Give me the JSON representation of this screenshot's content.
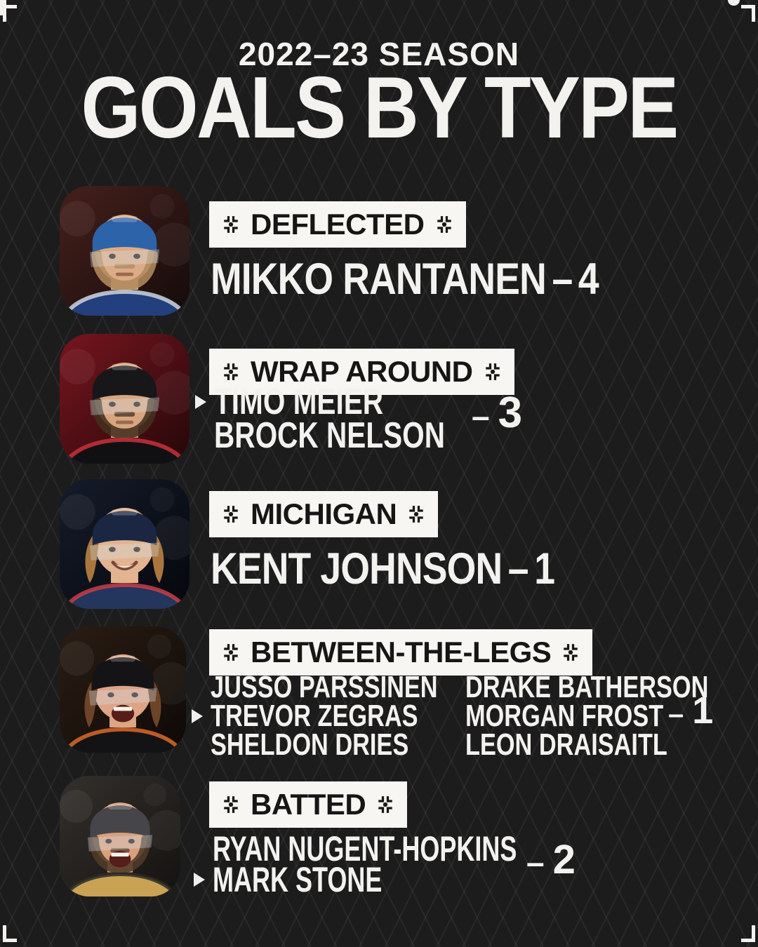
{
  "meta": {
    "dash": "–",
    "background": "#1c1c1d",
    "pattern_line_color": "#2b2b2d",
    "badge_bg": "#f7f6f3",
    "badge_text_color": "#161616",
    "text_color": "#f3f2ef"
  },
  "header": {
    "kicker": "2022–23 SEASON",
    "title": "GOALS BY TYPE"
  },
  "sections": [
    {
      "label": "DEFLECTED",
      "count": "4",
      "players": [
        {
          "name": "MIKKO RANTANEN",
          "starred": false
        }
      ],
      "photo": {
        "player": "Mikko Rantanen",
        "bg1": "#46201c",
        "bg2": "#140b0a",
        "helmet": "#2d63a8",
        "jersey": "#233f7d",
        "trim": "#cfd6df",
        "skin": "#dcab87",
        "hair": "#b08a5c",
        "expression": "neutral",
        "beard": true,
        "long_hair": false
      }
    },
    {
      "label": "WRAP AROUND",
      "count": "3",
      "players": [
        {
          "name": "TIMO MEIER",
          "starred": true
        },
        {
          "name": "BROCK NELSON",
          "starred": false
        }
      ],
      "photo": {
        "player": "Timo Meier",
        "bg1": "#77151f",
        "bg2": "#250709",
        "helmet": "#17171a",
        "jersey": "#101013",
        "trim": "#c8313a",
        "skin": "#d9a57f",
        "hair": "#43301f",
        "expression": "neutral",
        "beard": true,
        "long_hair": false
      }
    },
    {
      "label": "MICHIGAN",
      "count": "1",
      "players": [
        {
          "name": "KENT JOHNSON",
          "starred": false
        }
      ],
      "photo": {
        "player": "Kent Johnson",
        "bg1": "#151b2a",
        "bg2": "#05070c",
        "helmet": "#1b2742",
        "jersey": "#24355e",
        "trim": "#c63e46",
        "skin": "#e2b48f",
        "hair": "#a9763f",
        "expression": "smile",
        "beard": false,
        "long_hair": true
      }
    },
    {
      "label": "BETWEEN-THE-LEGS",
      "count": "1",
      "players_left": [
        {
          "name": "JUSSO PARSSINEN",
          "starred": false
        },
        {
          "name": "TREVOR ZEGRAS",
          "starred": true
        },
        {
          "name": "SHELDON DRIES",
          "starred": false
        }
      ],
      "players_right": [
        {
          "name": "DRAKE BATHERSON",
          "starred": false
        },
        {
          "name": "MORGAN FROST",
          "starred": false
        },
        {
          "name": "LEON DRAISAITL",
          "starred": false
        }
      ],
      "photo": {
        "player": "Trevor Zegras",
        "bg1": "#2a1d14",
        "bg2": "#0e0906",
        "helmet": "#141416",
        "jersey": "#131316",
        "trim": "#d96a2a",
        "skin": "#dda486",
        "hair": "#6e4429",
        "expression": "scream",
        "beard": false,
        "long_hair": true
      }
    },
    {
      "label": "BATTED",
      "count": "2",
      "players": [
        {
          "name": "RYAN NUGENT-HOPKINS",
          "starred": false
        },
        {
          "name": "MARK STONE",
          "starred": true
        }
      ],
      "photo": {
        "player": "Mark Stone",
        "bg1": "#34302c",
        "bg2": "#141210",
        "helmet": "#46464a",
        "jersey": "#c9a254",
        "trim": "#2e2c28",
        "skin": "#d9a07c",
        "hair": "#503a28",
        "expression": "scream",
        "beard": true,
        "long_hair": false
      }
    }
  ],
  "chart_data": {
    "type": "table",
    "title": "GOALS BY TYPE",
    "subtitle": "2022–23 SEASON",
    "categories": [
      "DEFLECTED",
      "WRAP AROUND",
      "MICHIGAN",
      "BETWEEN-THE-LEGS",
      "BATTED"
    ],
    "values": [
      4,
      3,
      1,
      1,
      2
    ],
    "players_by_category": {
      "DEFLECTED": [
        "MIKKO RANTANEN"
      ],
      "WRAP AROUND": [
        "TIMO MEIER",
        "BROCK NELSON"
      ],
      "MICHIGAN": [
        "KENT JOHNSON"
      ],
      "BETWEEN-THE-LEGS": [
        "JUSSO PARSSINEN",
        "TREVOR ZEGRAS",
        "SHELDON DRIES",
        "DRAKE BATHERSON",
        "MORGAN FROST",
        "LEON DRAISAITL"
      ],
      "BATTED": [
        "RYAN NUGENT-HOPKINS",
        "MARK STONE"
      ]
    }
  }
}
